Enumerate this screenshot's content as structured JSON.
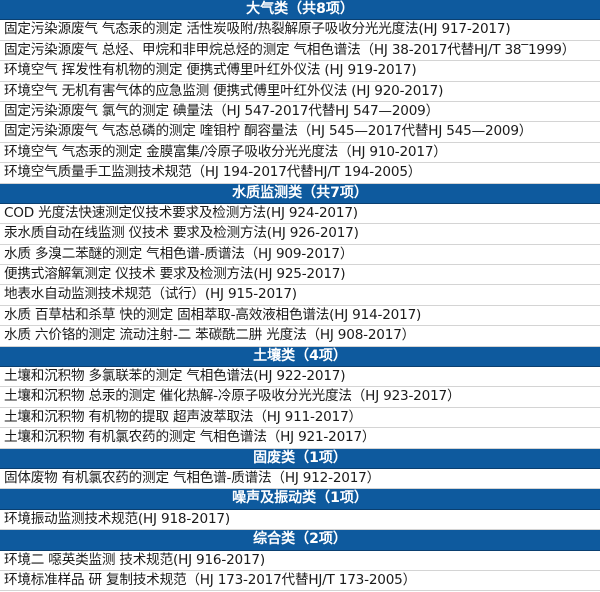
{
  "accent_color": "#0e5a9e",
  "sections": [
    {
      "title": "大气类（共8项）",
      "items": [
        "固定污染源废气 气态汞的测定 活性炭吸附/热裂解原子吸收分光光度法(HJ 917-2017)",
        "固定污染源废气 总烃、甲烷和非甲烷总烃的测定 气相色谱法（HJ 38-2017代替HJ/T 38‾1999）",
        "环境空气 挥发性有机物的测定  便携式傅里叶红外仪法 (HJ 919-2017)",
        "环境空气 无机有害气体的应急监测  便携式傅里叶红外仪法 (HJ 920-2017)",
        "固定污染源废气 氯气的测定 碘量法（HJ 547-2017代替HJ 547—2009）",
        "固定污染源废气 气态总磷的测定  喹钼柠 酮容量法（HJ 545—2017代替HJ 545—2009）",
        "环境空气 气态汞的测定 金膜富集/冷原子吸收分光光度法（HJ 910-2017）",
        "环境空气质量手工监测技术规范（HJ 194-2017代替HJ/T 194-2005）"
      ]
    },
    {
      "title": "水质监测类（共7项）",
      "items": [
        "COD 光度法快速测定仪技术要求及检测方法(HJ 924-2017)",
        "汞水质自动在线监测 仪技术 要求及检测方法(HJ 926-2017)",
        "水质 多溴二苯醚的测定 气相色谱-质谱法（HJ 909-2017）",
        "便携式溶解氧测定 仪技术 要求及检测方法(HJ 925-2017)",
        "地表水自动监测技术规范（试行）(HJ 915-2017)",
        "水质  百草枯和杀草 快的测定 固相萃取-高效液相色谱法(HJ 914-2017)",
        "水质 六价铬的测定 流动注射-二 苯碳酰二肼 光度法（HJ 908-2017）"
      ]
    },
    {
      "title": "土壤类（4项）",
      "items": [
        "土壤和沉积物 多氯联苯的测定 气相色谱法(HJ 922-2017)",
        "土壤和沉积物 总汞的测定 催化热解-冷原子吸收分光光度法（HJ 923-2017）",
        "土壤和沉积物 有机物的提取 超声波萃取法（HJ 911-2017）",
        "土壤和沉积物 有机氯农药的测定 气相色谱法（HJ 921-2017）"
      ]
    },
    {
      "title": "固废类（1项）",
      "items": [
        "固体废物 有机氯农药的测定 气相色谱-质谱法（HJ 912-2017）"
      ]
    },
    {
      "title": "噪声及振动类（1项）",
      "items": [
        "环境振动监测技术规范(HJ 918-2017)"
      ]
    },
    {
      "title": "综合类（2项）",
      "items": [
        "环境二 噁英类监测 技术规范(HJ 916-2017)",
        "环境标准样品 研 复制技术规范（HJ 173-2017代替HJ/T 173-2005）"
      ]
    }
  ]
}
